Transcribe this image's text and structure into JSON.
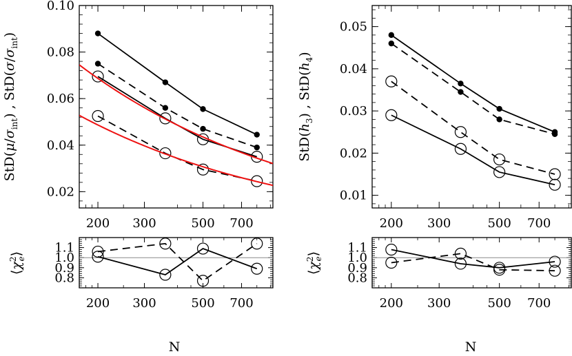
{
  "chart_data": [
    {
      "id": "top-left",
      "type": "line",
      "xscale": "log",
      "xlim": [
        170,
        920
      ],
      "ylim": [
        0.013,
        0.1
      ],
      "xticks": [
        200,
        300,
        500,
        700
      ],
      "yticks": [
        0.02,
        0.04,
        0.06,
        0.08,
        0.1
      ],
      "ytick_labels": [
        "0.02",
        "0.04",
        "0.06",
        "0.08",
        "0.10"
      ],
      "xtick_labels": [
        "200",
        "300",
        "500",
        "700"
      ],
      "ylabel": "StD(μ/σ_int) , StD(σ/σ_int)",
      "series": [
        {
          "style": "solid",
          "marker": "dot",
          "color": "#000000",
          "x": [
            200,
            360,
            500,
            800
          ],
          "y": [
            0.088,
            0.067,
            0.0555,
            0.0445
          ]
        },
        {
          "style": "dashed",
          "marker": "dot",
          "color": "#000000",
          "x": [
            200,
            360,
            500,
            800
          ],
          "y": [
            0.075,
            0.056,
            0.047,
            0.039
          ]
        },
        {
          "style": "solid",
          "marker": "circle",
          "color": "#000000",
          "x": [
            200,
            360,
            500,
            800
          ],
          "y": [
            0.0695,
            0.0515,
            0.0425,
            0.035
          ]
        },
        {
          "style": "dashed",
          "marker": "circle",
          "color": "#000000",
          "x": [
            200,
            360,
            500,
            800
          ],
          "y": [
            0.0525,
            0.0365,
            0.0295,
            0.0245
          ]
        },
        {
          "style": "solid",
          "marker": "none",
          "color": "#ee1111",
          "x": [
            170,
            300,
            500,
            920
          ],
          "y": [
            0.0745,
            0.0561,
            0.0435,
            0.0321
          ]
        },
        {
          "style": "solid",
          "marker": "none",
          "color": "#ee1111",
          "x": [
            170,
            300,
            500,
            920
          ],
          "y": [
            0.0528,
            0.0397,
            0.0307,
            0.0227
          ]
        }
      ]
    },
    {
      "id": "top-right",
      "type": "line",
      "xscale": "log",
      "xlim": [
        170,
        920
      ],
      "ylim": [
        0.007,
        0.055
      ],
      "xticks": [
        200,
        300,
        500,
        700
      ],
      "yticks": [
        0.01,
        0.02,
        0.03,
        0.04,
        0.05
      ],
      "ytick_labels": [
        "0.01",
        "0.02",
        "0.03",
        "0.04",
        "0.05"
      ],
      "xtick_labels": [
        "200",
        "300",
        "500",
        "700"
      ],
      "ylabel": "StD(h₃) , StD(h₄)",
      "series": [
        {
          "style": "solid",
          "marker": "dot",
          "color": "#000000",
          "x": [
            200,
            360,
            500,
            800
          ],
          "y": [
            0.048,
            0.0365,
            0.0305,
            0.025
          ]
        },
        {
          "style": "dashed",
          "marker": "dot",
          "color": "#000000",
          "x": [
            200,
            360,
            500,
            800
          ],
          "y": [
            0.046,
            0.0345,
            0.028,
            0.0245
          ]
        },
        {
          "style": "dashed",
          "marker": "circle",
          "color": "#000000",
          "x": [
            200,
            360,
            500,
            800
          ],
          "y": [
            0.037,
            0.025,
            0.0185,
            0.015
          ]
        },
        {
          "style": "solid",
          "marker": "circle",
          "color": "#000000",
          "x": [
            200,
            360,
            500,
            800
          ],
          "y": [
            0.029,
            0.021,
            0.0155,
            0.0125
          ]
        }
      ]
    },
    {
      "id": "bottom-left",
      "type": "line",
      "xscale": "log",
      "xlim": [
        170,
        920
      ],
      "ylim": [
        0.7,
        1.2
      ],
      "xticks": [
        200,
        300,
        500,
        700
      ],
      "yticks": [
        0.8,
        0.9,
        1.0,
        1.1
      ],
      "ytick_labels": [
        "0.8",
        "0.9",
        "1.0",
        "1.1"
      ],
      "xtick_labels": [
        "200",
        "300",
        "500",
        "700"
      ],
      "xlabel": "N",
      "ylabel": "⟨χ²e⟩",
      "reference_line": 1.0,
      "series": [
        {
          "style": "solid",
          "marker": "circle",
          "color": "#000000",
          "x": [
            200,
            360,
            500,
            800
          ],
          "y": [
            1.01,
            0.83,
            1.09,
            0.89
          ]
        },
        {
          "style": "dashed",
          "marker": "circle",
          "color": "#000000",
          "x": [
            200,
            360,
            500,
            800
          ],
          "y": [
            1.06,
            1.14,
            0.77,
            1.14
          ]
        }
      ]
    },
    {
      "id": "bottom-right",
      "type": "line",
      "xscale": "log",
      "xlim": [
        170,
        920
      ],
      "ylim": [
        0.7,
        1.2
      ],
      "xticks": [
        200,
        300,
        500,
        700
      ],
      "yticks": [
        0.8,
        0.9,
        1.0,
        1.1
      ],
      "ytick_labels": [
        "0.8",
        "0.9",
        "1.0",
        "1.1"
      ],
      "xtick_labels": [
        "200",
        "300",
        "500",
        "700"
      ],
      "xlabel": "N",
      "ylabel": "⟨χ²e⟩",
      "reference_line": 1.0,
      "series": [
        {
          "style": "solid",
          "marker": "circle",
          "color": "#000000",
          "x": [
            200,
            360,
            500,
            800
          ],
          "y": [
            1.08,
            0.94,
            0.9,
            0.96
          ]
        },
        {
          "style": "dashed",
          "marker": "circle",
          "color": "#000000",
          "x": [
            200,
            360,
            500,
            800
          ],
          "y": [
            0.95,
            1.04,
            0.88,
            0.87
          ]
        }
      ]
    }
  ]
}
